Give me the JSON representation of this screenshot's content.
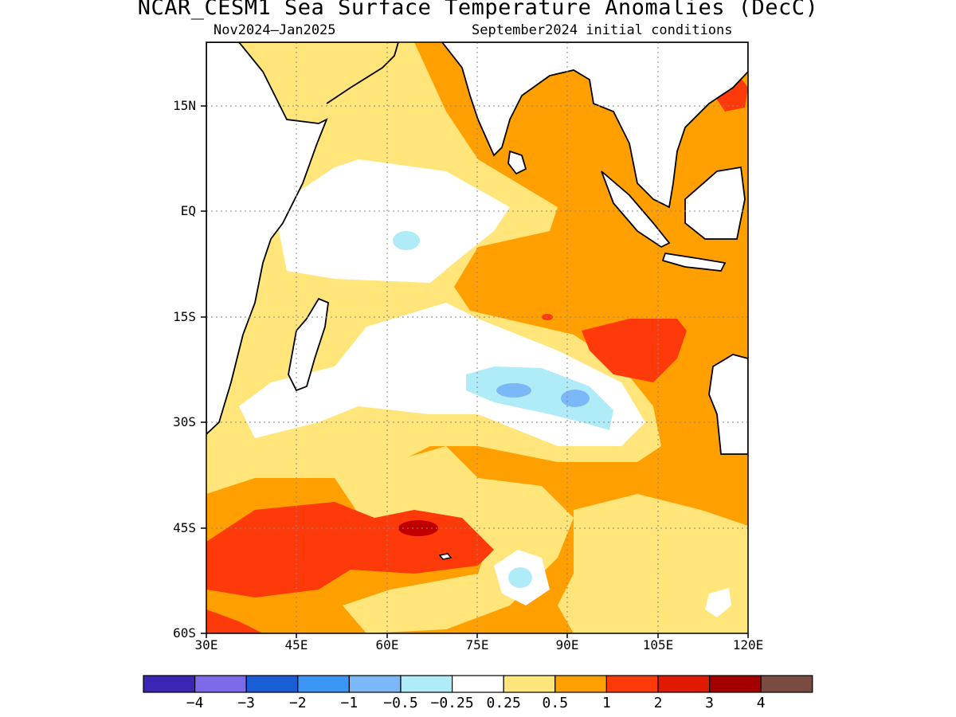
{
  "title": "NCAR_CESM1 Sea Surface Temperature Anomalies (DecC)",
  "subtitle_left": "Nov2024–Jan2025",
  "subtitle_right": "September2024 initial conditions",
  "map": {
    "lat_labels": [
      "15N",
      "EQ",
      "15S",
      "30S",
      "45S",
      "60S"
    ],
    "lon_labels": [
      "30E",
      "45E",
      "60E",
      "75E",
      "90E",
      "105E",
      "120E"
    ],
    "lon_range": [
      30,
      120
    ],
    "lat_range": [
      -60,
      24
    ]
  },
  "colorbar": {
    "colors": [
      "#3b25b5",
      "#7b6be8",
      "#1a5ed6",
      "#3c96f5",
      "#7ab8f8",
      "#b0ecf8",
      "#ffffff",
      "#ffe57a",
      "#ffa000",
      "#ff3a0a",
      "#e01a00",
      "#a50000",
      "#7a4b40"
    ],
    "labels": [
      "−4",
      "−3",
      "−2",
      "−1",
      "−0.5",
      "−0.25",
      "0.25",
      "0.5",
      "1",
      "2",
      "3",
      "4"
    ]
  }
}
